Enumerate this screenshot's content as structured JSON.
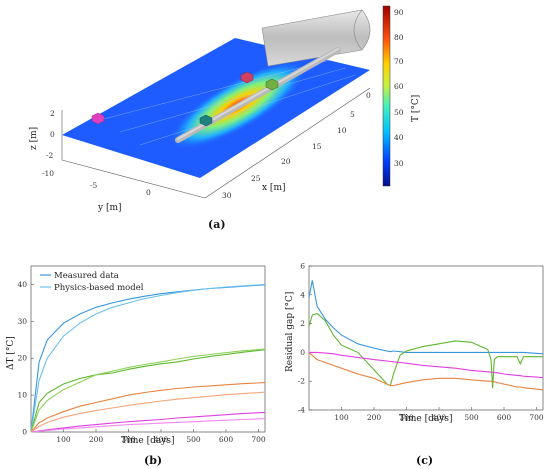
{
  "panel_a": {
    "caption": "(a)",
    "zlabel": "z [m]",
    "ylabel": "y [m]",
    "xlabel": "x [m]",
    "z_ticks": [
      "2",
      "0",
      "-2"
    ],
    "y_ticks": [
      "-10",
      "-5",
      "0"
    ],
    "x_ticks": [
      "0",
      "5",
      "10",
      "15",
      "20",
      "25",
      "30"
    ],
    "colorbar": {
      "label": "T [°C]",
      "ticks": [
        "90",
        "80",
        "70",
        "60",
        "50",
        "40",
        "30"
      ]
    }
  },
  "panel_b": {
    "caption": "(b)"
  },
  "panel_c": {
    "caption": "(c)"
  },
  "chart_data": [
    {
      "type": "line",
      "panel": "b",
      "xlabel": "Time [days]",
      "ylabel": "ΔT [°C]",
      "xlim": [
        0,
        720
      ],
      "ylim": [
        0,
        45
      ],
      "xticks": [
        100,
        200,
        300,
        400,
        500,
        600,
        700
      ],
      "yticks": [
        0,
        10,
        20,
        30,
        40
      ],
      "legend": [
        "Measured data",
        "Physics-based model"
      ],
      "legend_position": "top-left",
      "x": [
        0,
        25,
        50,
        100,
        150,
        200,
        250,
        300,
        350,
        400,
        450,
        500,
        550,
        600,
        650,
        720
      ],
      "series": [
        {
          "name": "Measured data",
          "color": "#3a96dd",
          "values": [
            0,
            19,
            25,
            29.5,
            32,
            33.8,
            35,
            36,
            36.8,
            37.5,
            38,
            38.5,
            38.9,
            39.2,
            39.5,
            39.9
          ]
        },
        {
          "name": "Physics-based model",
          "color": "#6cc0f0",
          "values": [
            0,
            14,
            20,
            26,
            29.5,
            32,
            33.8,
            35,
            36.2,
            37,
            37.8,
            38.4,
            38.9,
            39.3,
            39.6,
            40
          ]
        },
        {
          "color": "#5cb82e",
          "values": [
            0,
            8,
            10.5,
            13,
            14.5,
            15.5,
            16,
            17,
            17.8,
            18.5,
            19,
            19.8,
            20.5,
            21,
            21.6,
            22.3
          ]
        },
        {
          "color": "#8fd15a",
          "values": [
            0,
            6,
            8.5,
            11.5,
            13.5,
            15.5,
            16.5,
            17.5,
            18.3,
            19,
            19.8,
            20.5,
            21,
            21.5,
            22,
            22.5
          ]
        },
        {
          "color": "#e8833f",
          "values": [
            0,
            2.5,
            3.8,
            5.5,
            7,
            8,
            9,
            10,
            10.7,
            11.3,
            11.8,
            12.2,
            12.5,
            12.8,
            13.1,
            13.4
          ]
        },
        {
          "color": "#f5a57a",
          "values": [
            0,
            1.5,
            2.6,
            4,
            5,
            5.8,
            6.5,
            7.2,
            7.8,
            8.4,
            8.9,
            9.3,
            9.7,
            10.1,
            10.4,
            10.8
          ]
        },
        {
          "color": "#e040e0",
          "values": [
            0,
            0.3,
            0.6,
            1.1,
            1.6,
            2,
            2.4,
            2.8,
            3.1,
            3.4,
            3.8,
            4.1,
            4.4,
            4.7,
            5,
            5.3
          ]
        },
        {
          "color": "#f088f0",
          "values": [
            0,
            0.2,
            0.4,
            0.8,
            1.1,
            1.4,
            1.7,
            2,
            2.2,
            2.4,
            2.6,
            2.8,
            3,
            3.2,
            3.4,
            3.6
          ]
        }
      ]
    },
    {
      "type": "line",
      "panel": "c",
      "xlabel": "Time [days]",
      "ylabel": "Residual gap [°C]",
      "xlim": [
        0,
        720
      ],
      "ylim": [
        -4,
        6
      ],
      "xticks": [
        100,
        200,
        300,
        400,
        500,
        600,
        700
      ],
      "yticks": [
        -4,
        -2,
        0,
        2,
        4,
        6
      ],
      "x": [
        0,
        10,
        25,
        50,
        75,
        100,
        150,
        200,
        240,
        250,
        260,
        280,
        300,
        350,
        400,
        450,
        500,
        550,
        560,
        565,
        570,
        580,
        600,
        640,
        650,
        660,
        720
      ],
      "series": [
        {
          "color": "#3a96dd",
          "values": [
            3.8,
            5,
            3.2,
            2.3,
            1.7,
            1.2,
            0.6,
            0.3,
            0.1,
            0.05,
            0.1,
            0.05,
            0,
            0,
            0,
            0,
            0,
            0,
            0,
            0,
            0,
            0,
            0,
            0,
            0,
            0,
            -0.1
          ]
        },
        {
          "color": "#5cb82e",
          "values": [
            1.8,
            2.6,
            2.7,
            2.2,
            1.2,
            0.5,
            0,
            -1.2,
            -2.2,
            -2.3,
            -1.5,
            -0.2,
            0.1,
            0.4,
            0.6,
            0.8,
            0.7,
            0.2,
            -0.5,
            -2.5,
            -0.5,
            -0.3,
            -0.3,
            -0.3,
            -0.8,
            -0.3,
            -0.3
          ]
        },
        {
          "color": "#e8833f",
          "values": [
            0,
            -0.2,
            -0.5,
            -0.7,
            -0.9,
            -1.1,
            -1.5,
            -1.8,
            -2.2,
            -2.3,
            -2.3,
            -2.2,
            -2.1,
            -1.9,
            -1.8,
            -1.8,
            -1.9,
            -2,
            -2,
            -2,
            -2.05,
            -2.1,
            -2.2,
            -2.4,
            -2.4,
            -2.45,
            -2.6
          ]
        },
        {
          "color": "#e040e0",
          "values": [
            0,
            0,
            0,
            -0.05,
            -0.1,
            -0.2,
            -0.35,
            -0.5,
            -0.6,
            -0.63,
            -0.65,
            -0.7,
            -0.75,
            -0.9,
            -1,
            -1.1,
            -1.25,
            -1.35,
            -1.37,
            -1.38,
            -1.4,
            -1.42,
            -1.5,
            -1.6,
            -1.62,
            -1.65,
            -1.75
          ]
        }
      ]
    }
  ]
}
